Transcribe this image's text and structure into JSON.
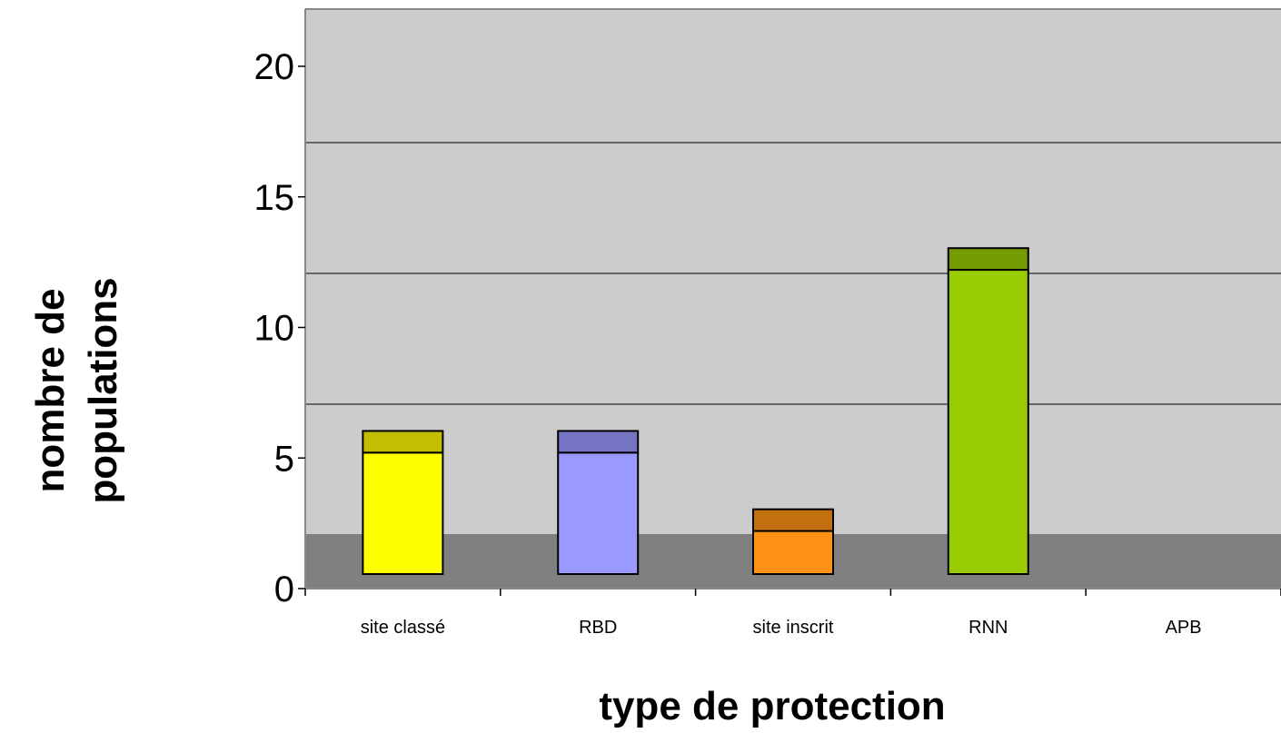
{
  "chart_data": {
    "type": "bar",
    "stacked": true,
    "xlabel": "type de protection",
    "ylabel_lines": [
      "nombre de",
      "populations"
    ],
    "ylim": [
      0,
      20
    ],
    "yticks": [
      "0",
      "5",
      "10",
      "15",
      "20"
    ],
    "ytick_values": [
      0,
      5,
      10,
      15,
      20
    ],
    "categories": [
      "site classé",
      "RBD",
      "site inscrit",
      "RNN",
      "APB"
    ],
    "series": [
      {
        "values": [
          4,
          4,
          1,
          11,
          0
        ]
      },
      {
        "values": [
          1,
          1,
          1,
          1,
          0
        ]
      }
    ],
    "colors": {
      "plot_background": "#cccccc",
      "plot_floor": "#808080",
      "gridline": "#000000",
      "bar_lower": [
        "#ffff00",
        "#9999ff",
        "#ff9214",
        "#99cc00",
        "#cccccc"
      ],
      "bar_upper": [
        "#c2bf00",
        "#7474c2",
        "#c2700f",
        "#749b00",
        "#cccccc"
      ]
    },
    "grid": true,
    "legend": "none"
  }
}
